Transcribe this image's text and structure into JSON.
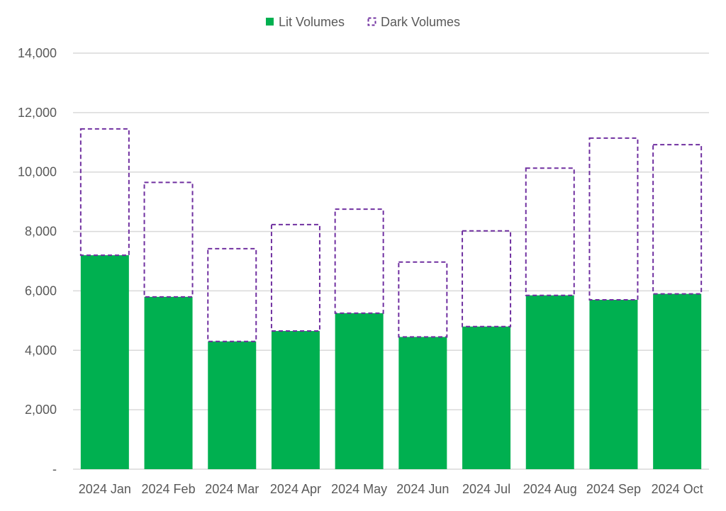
{
  "colors": {
    "lit": "#00B050",
    "dark_outline": "#7030A0",
    "gridline": "#D9D9D9",
    "text": "#595959"
  },
  "chart_data": {
    "type": "bar",
    "stacked": true,
    "categories": [
      "2024 Jan",
      "2024 Feb",
      "2024 Mar",
      "2024 Apr",
      "2024 May",
      "2024 Jun",
      "2024 Jul",
      "2024 Aug",
      "2024 Sep",
      "2024 Oct"
    ],
    "series": [
      {
        "name": "Lit Volumes",
        "style": "solid-fill",
        "values": [
          7200,
          5800,
          4300,
          4650,
          5250,
          4450,
          4800,
          5850,
          5700,
          5900
        ]
      },
      {
        "name": "Dark Volumes",
        "style": "dashed-outline",
        "values": [
          4250,
          3850,
          3120,
          3580,
          3500,
          2520,
          3220,
          4280,
          5440,
          5020
        ]
      }
    ],
    "ylim": [
      0,
      14000
    ],
    "yticks": [
      0,
      2000,
      4000,
      6000,
      8000,
      10000,
      12000,
      14000
    ],
    "ytick_labels": [
      "-",
      "2,000",
      "4,000",
      "6,000",
      "8,000",
      "10,000",
      "12,000",
      "14,000"
    ],
    "title": "",
    "xlabel": "",
    "ylabel": "",
    "grid": "horizontal",
    "legend_position": "top-center"
  }
}
